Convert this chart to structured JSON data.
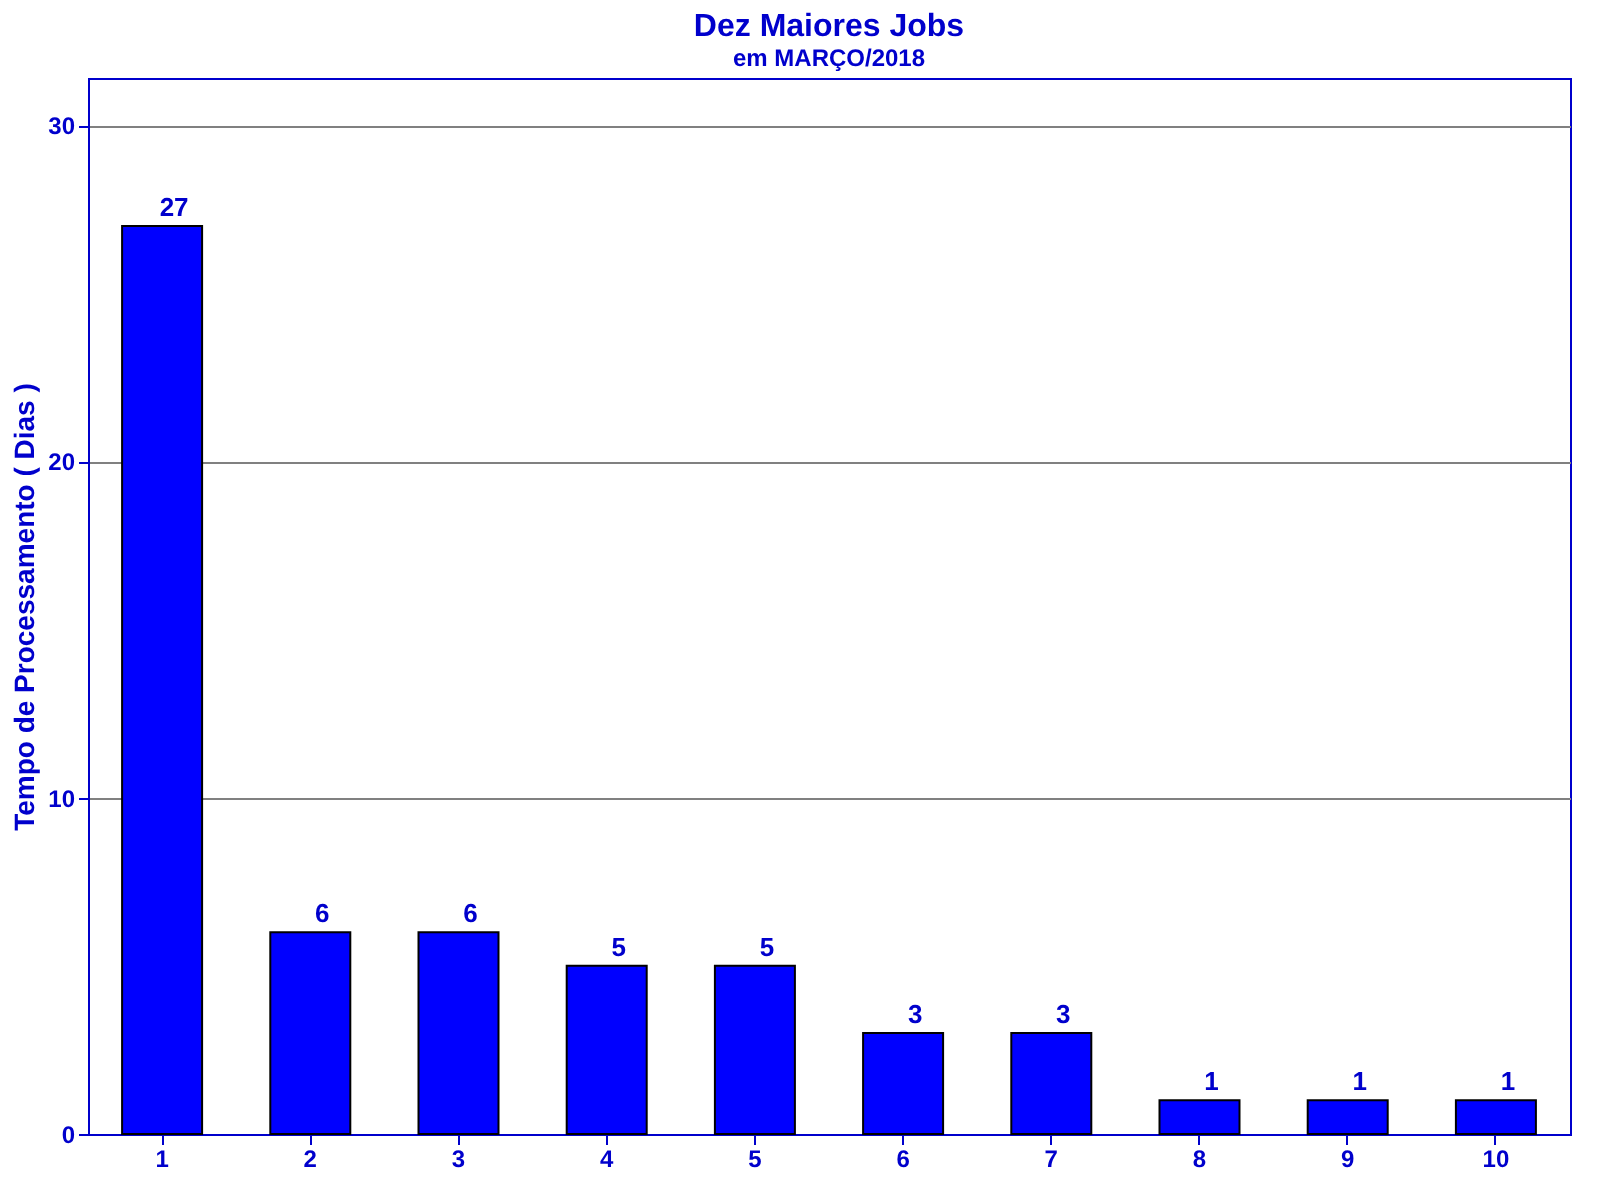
{
  "chart_data": {
    "type": "bar",
    "title": "Dez Maiores Jobs",
    "subtitle": "em MARÇO/2018",
    "ylabel": "Tempo de Processamento ( Dias )",
    "categories": [
      "1",
      "2",
      "3",
      "4",
      "5",
      "6",
      "7",
      "8",
      "9",
      "10"
    ],
    "values": [
      27,
      6,
      6,
      5,
      5,
      3,
      3,
      1,
      1,
      1
    ],
    "color": "#0000ff",
    "ylim": [
      0,
      31.4
    ],
    "yticks": [
      0,
      10,
      20,
      30
    ],
    "grid": "y",
    "data_labels": true
  }
}
